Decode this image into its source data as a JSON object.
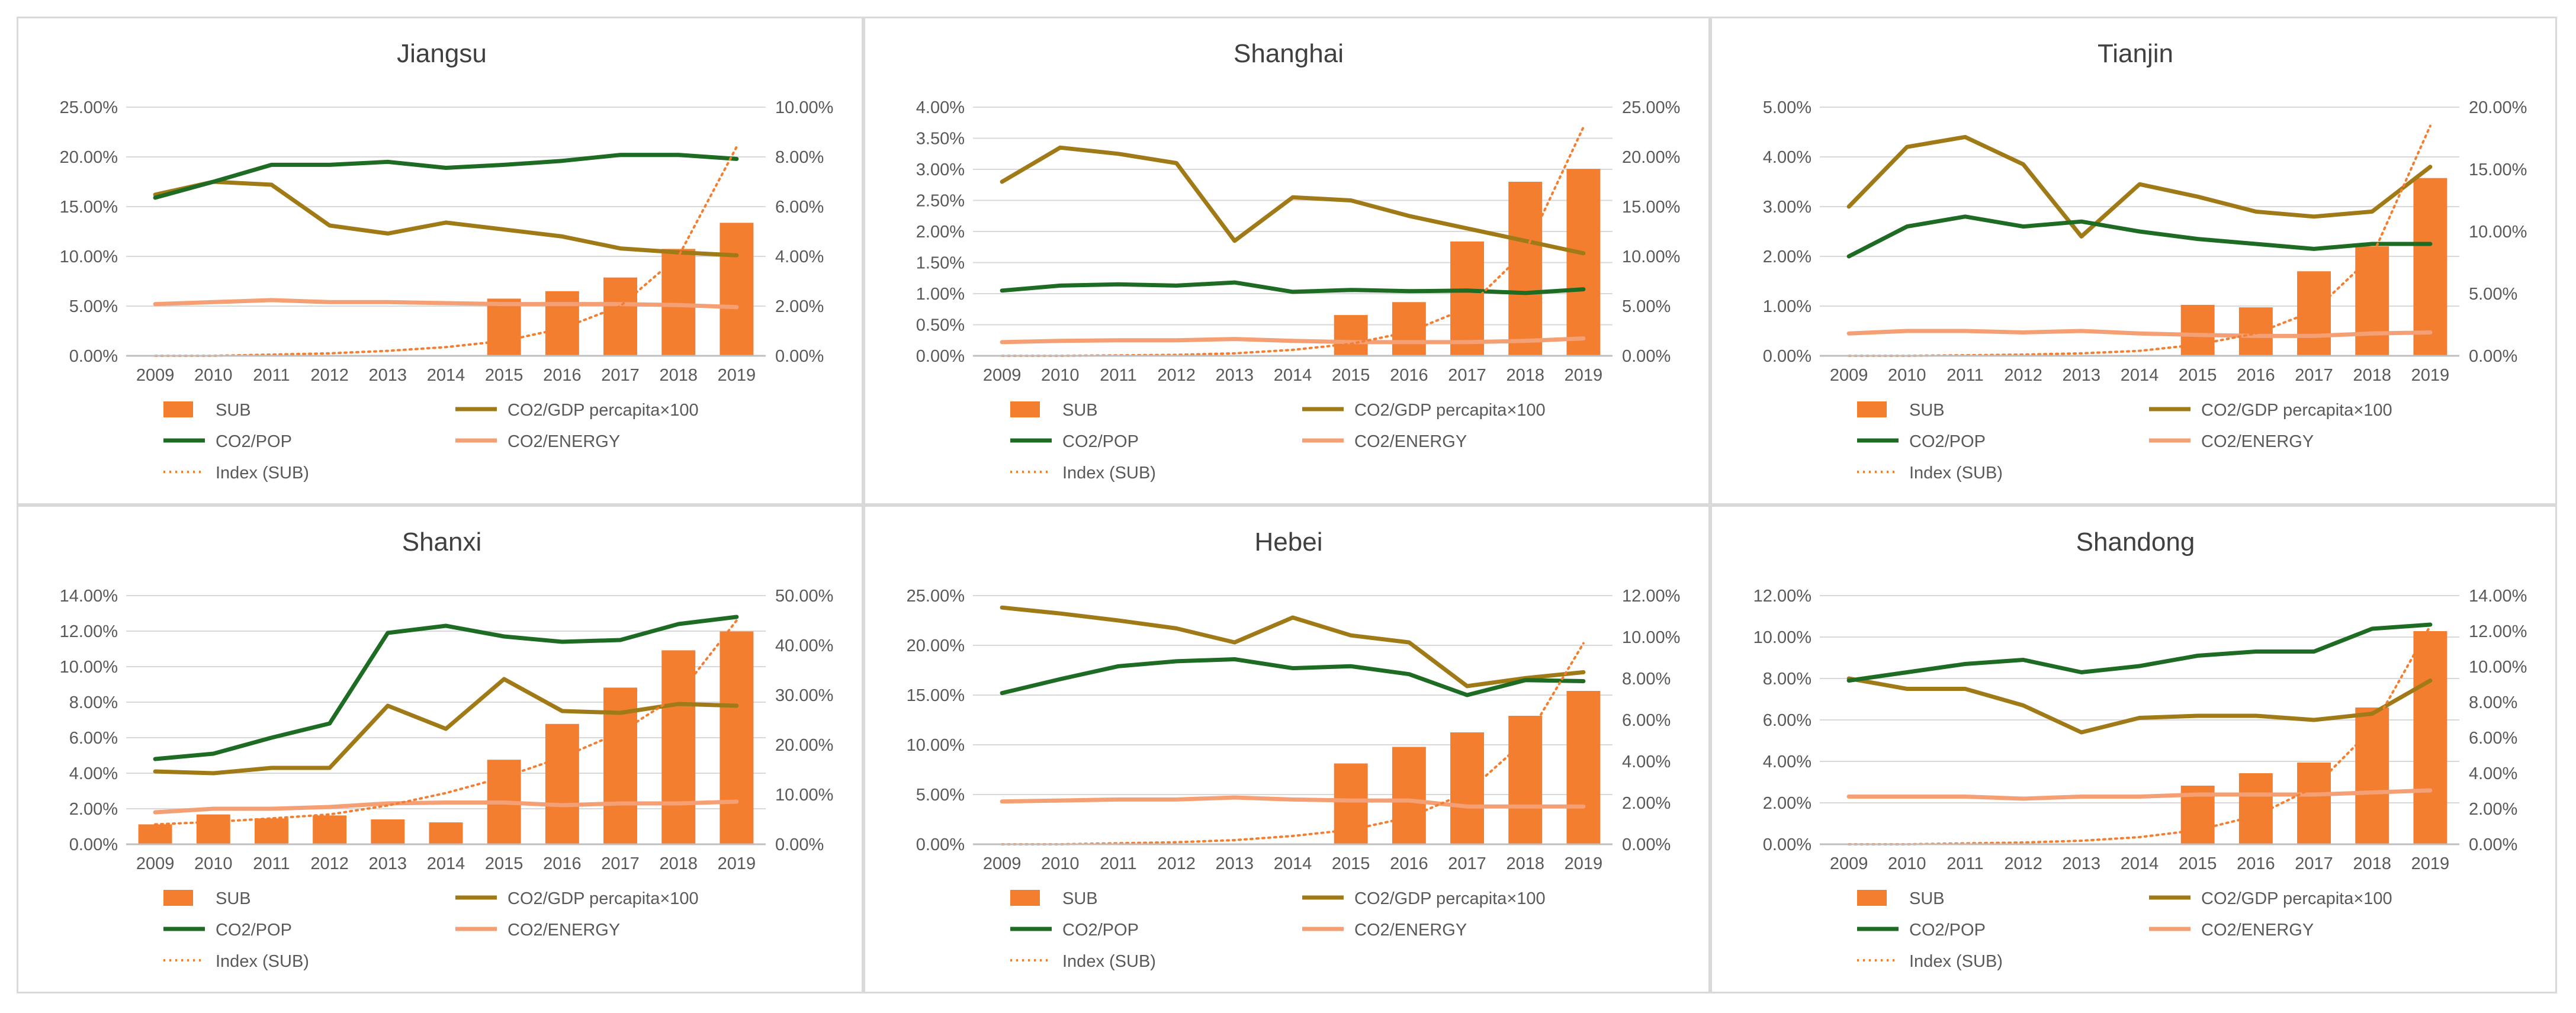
{
  "colors": {
    "SUB": "#f47e30",
    "CO2/GDP percapita×100": "#a07a16",
    "CO2/POP": "#1e6b23",
    "CO2/ENERGY": "#f4a074",
    "Index (SUB)": "#f47e30",
    "grid": "#d9d9d9",
    "axis": "#bfbfbf"
  },
  "chart_data": [
    {
      "type": "bar",
      "title": "Jiangsu",
      "categories": [
        "2009",
        "2010",
        "2011",
        "2012",
        "2013",
        "2014",
        "2015",
        "2016",
        "2017",
        "2018",
        "2019"
      ],
      "left_axis": {
        "min": 0,
        "max": 25,
        "step": 5,
        "tick_labels": [
          "0.00%",
          "5.00%",
          "10.00%",
          "15.00%",
          "20.00%",
          "25.00%"
        ]
      },
      "right_axis": {
        "min": 0,
        "max": 10,
        "step": 2,
        "tick_labels": [
          "0.00%",
          "2.00%",
          "4.00%",
          "6.00%",
          "8.00%",
          "10.00%"
        ]
      },
      "legend": [
        "SUB",
        "CO2/GDP percapita×100",
        "CO2/POP",
        "CO2/ENERGY",
        "Index (SUB)"
      ],
      "series": [
        {
          "name": "SUB",
          "kind": "bar",
          "axis": "right",
          "values": [
            0,
            0,
            0,
            0,
            0,
            0,
            2.3,
            2.6,
            3.15,
            4.3,
            5.35
          ]
        },
        {
          "name": "CO2/GDP percapita×100",
          "kind": "line",
          "axis": "left",
          "values": [
            16.2,
            17.5,
            17.2,
            13.1,
            12.3,
            13.4,
            12.7,
            12.0,
            10.8,
            10.4,
            10.1
          ]
        },
        {
          "name": "CO2/POP",
          "kind": "line",
          "axis": "left",
          "values": [
            15.9,
            17.5,
            19.2,
            19.2,
            19.5,
            18.9,
            19.2,
            19.6,
            20.2,
            20.2,
            19.8
          ]
        },
        {
          "name": "CO2/ENERGY",
          "kind": "line",
          "axis": "left",
          "values": [
            5.2,
            5.4,
            5.6,
            5.4,
            5.4,
            5.3,
            5.2,
            5.2,
            5.2,
            5.1,
            4.9
          ]
        },
        {
          "name": "Index (SUB)",
          "kind": "trend",
          "axis": "right",
          "values": [
            0,
            0,
            0.05,
            0.1,
            0.2,
            0.35,
            0.6,
            1.1,
            2.0,
            4.0,
            8.4
          ]
        }
      ]
    },
    {
      "type": "bar",
      "title": "Shanghai",
      "categories": [
        "2009",
        "2010",
        "2011",
        "2012",
        "2013",
        "2014",
        "2015",
        "2016",
        "2017",
        "2018",
        "2019"
      ],
      "left_axis": {
        "min": 0,
        "max": 4,
        "step": 0.5,
        "tick_labels": [
          "0.00%",
          "0.50%",
          "1.00%",
          "1.50%",
          "2.00%",
          "2.50%",
          "3.00%",
          "3.50%",
          "4.00%"
        ]
      },
      "right_axis": {
        "min": 0,
        "max": 25,
        "step": 5,
        "tick_labels": [
          "0.00%",
          "5.00%",
          "10.00%",
          "15.00%",
          "20.00%",
          "25.00%"
        ]
      },
      "legend": [
        "SUB",
        "CO2/GDP percapita×100",
        "CO2/POP",
        "CO2/ENERGY",
        "Index (SUB)"
      ],
      "series": [
        {
          "name": "SUB",
          "kind": "bar",
          "axis": "right",
          "values": [
            0,
            0,
            0,
            0,
            0,
            0,
            4.1,
            5.4,
            11.5,
            17.5,
            18.8
          ]
        },
        {
          "name": "CO2/GDP percapita×100",
          "kind": "line",
          "axis": "left",
          "values": [
            2.8,
            3.35,
            3.25,
            3.1,
            1.85,
            2.55,
            2.5,
            2.25,
            2.05,
            1.85,
            1.65
          ]
        },
        {
          "name": "CO2/POP",
          "kind": "line",
          "axis": "left",
          "values": [
            1.05,
            1.13,
            1.15,
            1.13,
            1.18,
            1.03,
            1.06,
            1.04,
            1.05,
            1.01,
            1.07
          ]
        },
        {
          "name": "CO2/ENERGY",
          "kind": "line",
          "axis": "left",
          "values": [
            0.22,
            0.24,
            0.25,
            0.25,
            0.27,
            0.24,
            0.22,
            0.22,
            0.22,
            0.24,
            0.28
          ]
        },
        {
          "name": "Index (SUB)",
          "kind": "trend",
          "axis": "right",
          "values": [
            0,
            0,
            0.05,
            0.1,
            0.25,
            0.6,
            1.2,
            2.4,
            4.8,
            10.5,
            23.0
          ]
        }
      ]
    },
    {
      "type": "bar",
      "title": "Tianjin",
      "categories": [
        "2009",
        "2010",
        "2011",
        "2012",
        "2013",
        "2014",
        "2015",
        "2016",
        "2017",
        "2018",
        "2019"
      ],
      "left_axis": {
        "min": 0,
        "max": 5,
        "step": 1,
        "tick_labels": [
          "0.00%",
          "1.00%",
          "2.00%",
          "3.00%",
          "4.00%",
          "5.00%"
        ]
      },
      "right_axis": {
        "min": 0,
        "max": 20,
        "step": 5,
        "tick_labels": [
          "0.00%",
          "5.00%",
          "10.00%",
          "15.00%",
          "20.00%"
        ]
      },
      "legend": [
        "SUB",
        "CO2/GDP percapita×100",
        "CO2/POP",
        "CO2/ENERGY",
        "Index (SUB)"
      ],
      "series": [
        {
          "name": "SUB",
          "kind": "bar",
          "axis": "right",
          "values": [
            0,
            0,
            0,
            0,
            0,
            0,
            4.1,
            3.9,
            6.8,
            8.8,
            14.3
          ]
        },
        {
          "name": "CO2/GDP percapita×100",
          "kind": "line",
          "axis": "left",
          "values": [
            3.0,
            4.2,
            4.4,
            3.85,
            2.4,
            3.45,
            3.2,
            2.9,
            2.8,
            2.9,
            3.8
          ]
        },
        {
          "name": "CO2/POP",
          "kind": "line",
          "axis": "left",
          "values": [
            2.0,
            2.6,
            2.8,
            2.6,
            2.7,
            2.5,
            2.35,
            2.25,
            2.15,
            2.25,
            2.25
          ]
        },
        {
          "name": "CO2/ENERGY",
          "kind": "line",
          "axis": "left",
          "values": [
            0.45,
            0.5,
            0.5,
            0.47,
            0.5,
            0.45,
            0.42,
            0.4,
            0.4,
            0.45,
            0.47
          ]
        },
        {
          "name": "Index (SUB)",
          "kind": "trend",
          "axis": "right",
          "values": [
            0,
            0,
            0.05,
            0.1,
            0.2,
            0.4,
            0.9,
            1.8,
            3.6,
            8.0,
            18.5
          ]
        }
      ]
    },
    {
      "type": "bar",
      "title": "Shanxi",
      "categories": [
        "2009",
        "2010",
        "2011",
        "2012",
        "2013",
        "2014",
        "2015",
        "2016",
        "2017",
        "2018",
        "2019"
      ],
      "left_axis": {
        "min": 0,
        "max": 14,
        "step": 2,
        "tick_labels": [
          "0.00%",
          "2.00%",
          "4.00%",
          "6.00%",
          "8.00%",
          "10.00%",
          "12.00%",
          "14.00%"
        ]
      },
      "right_axis": {
        "min": 0,
        "max": 50,
        "step": 10,
        "tick_labels": [
          "0.00%",
          "10.00%",
          "20.00%",
          "30.00%",
          "40.00%",
          "50.00%"
        ]
      },
      "legend": [
        "SUB",
        "CO2/GDP percapita×100",
        "CO2/POP",
        "CO2/ENERGY",
        "Index (SUB)"
      ],
      "series": [
        {
          "name": "SUB",
          "kind": "bar",
          "axis": "right",
          "values": [
            4.0,
            6.0,
            5.2,
            5.8,
            5.0,
            4.4,
            17.0,
            24.2,
            31.5,
            39.0,
            42.8
          ]
        },
        {
          "name": "CO2/GDP percapita×100",
          "kind": "line",
          "axis": "left",
          "values": [
            4.1,
            4.0,
            4.3,
            4.3,
            7.8,
            6.5,
            9.3,
            7.5,
            7.4,
            7.9,
            7.8
          ]
        },
        {
          "name": "CO2/POP",
          "kind": "line",
          "axis": "left",
          "values": [
            4.8,
            5.1,
            6.0,
            6.8,
            11.9,
            12.3,
            11.7,
            11.4,
            11.5,
            12.4,
            12.8
          ]
        },
        {
          "name": "CO2/ENERGY",
          "kind": "line",
          "axis": "left",
          "values": [
            1.8,
            2.0,
            2.0,
            2.1,
            2.3,
            2.35,
            2.35,
            2.2,
            2.3,
            2.3,
            2.4
          ]
        },
        {
          "name": "Index (SUB)",
          "kind": "trend",
          "axis": "right",
          "values": [
            4.0,
            4.5,
            5.2,
            6.0,
            7.8,
            10.3,
            13.5,
            17.5,
            22.5,
            30.0,
            45.0
          ]
        }
      ]
    },
    {
      "type": "bar",
      "title": "Hebei",
      "categories": [
        "2009",
        "2010",
        "2011",
        "2012",
        "2013",
        "2014",
        "2015",
        "2016",
        "2017",
        "2018",
        "2019"
      ],
      "left_axis": {
        "min": 0,
        "max": 25,
        "step": 5,
        "tick_labels": [
          "0.00%",
          "5.00%",
          "10.00%",
          "15.00%",
          "20.00%",
          "25.00%"
        ]
      },
      "right_axis": {
        "min": 0,
        "max": 12,
        "step": 2,
        "tick_labels": [
          "0.00%",
          "2.00%",
          "4.00%",
          "6.00%",
          "8.00%",
          "10.00%",
          "12.00%"
        ]
      },
      "legend": [
        "SUB",
        "CO2/GDP percapita×100",
        "CO2/POP",
        "CO2/ENERGY",
        "Index (SUB)"
      ],
      "series": [
        {
          "name": "SUB",
          "kind": "bar",
          "axis": "right",
          "values": [
            0,
            0,
            0,
            0,
            0,
            0,
            3.9,
            4.7,
            5.4,
            6.2,
            7.4
          ]
        },
        {
          "name": "CO2/GDP percapita×100",
          "kind": "line",
          "axis": "left",
          "values": [
            23.8,
            23.2,
            22.5,
            21.7,
            20.3,
            22.8,
            21.0,
            20.3,
            15.9,
            16.7,
            17.3
          ]
        },
        {
          "name": "CO2/POP",
          "kind": "line",
          "axis": "left",
          "values": [
            15.2,
            16.6,
            17.9,
            18.4,
            18.6,
            17.7,
            17.9,
            17.1,
            15.0,
            16.5,
            16.4
          ]
        },
        {
          "name": "CO2/ENERGY",
          "kind": "line",
          "axis": "left",
          "values": [
            4.3,
            4.4,
            4.5,
            4.5,
            4.7,
            4.5,
            4.4,
            4.4,
            3.8,
            3.8,
            3.8
          ]
        },
        {
          "name": "Index (SUB)",
          "kind": "trend",
          "axis": "right",
          "values": [
            0,
            0,
            0.05,
            0.1,
            0.2,
            0.4,
            0.7,
            1.3,
            2.5,
            5.0,
            9.7
          ]
        }
      ]
    },
    {
      "type": "bar",
      "title": "Shandong",
      "categories": [
        "2009",
        "2010",
        "2011",
        "2012",
        "2013",
        "2014",
        "2015",
        "2016",
        "2017",
        "2018",
        "2019"
      ],
      "left_axis": {
        "min": 0,
        "max": 12,
        "step": 2,
        "tick_labels": [
          "0.00%",
          "2.00%",
          "4.00%",
          "6.00%",
          "8.00%",
          "10.00%",
          "12.00%"
        ]
      },
      "right_axis": {
        "min": 0,
        "max": 14,
        "step": 2,
        "tick_labels": [
          "0.00%",
          "2.00%",
          "4.00%",
          "6.00%",
          "8.00%",
          "10.00%",
          "12.00%",
          "14.00%"
        ]
      },
      "legend": [
        "SUB",
        "CO2/GDP percapita×100",
        "CO2/POP",
        "CO2/ENERGY",
        "Index (SUB)"
      ],
      "series": [
        {
          "name": "SUB",
          "kind": "bar",
          "axis": "right",
          "values": [
            0,
            0,
            0,
            0,
            0,
            0,
            3.3,
            4.0,
            4.6,
            7.7,
            12.0
          ]
        },
        {
          "name": "CO2/GDP percapita×100",
          "kind": "line",
          "axis": "left",
          "values": [
            8.0,
            7.5,
            7.5,
            6.7,
            5.4,
            6.1,
            6.2,
            6.2,
            6.0,
            6.3,
            7.9
          ]
        },
        {
          "name": "CO2/POP",
          "kind": "line",
          "axis": "left",
          "values": [
            7.9,
            8.3,
            8.7,
            8.9,
            8.3,
            8.6,
            9.1,
            9.3,
            9.3,
            10.4,
            10.6
          ]
        },
        {
          "name": "CO2/ENERGY",
          "kind": "line",
          "axis": "left",
          "values": [
            2.3,
            2.3,
            2.3,
            2.2,
            2.3,
            2.3,
            2.4,
            2.4,
            2.4,
            2.5,
            2.6
          ]
        },
        {
          "name": "Index (SUB)",
          "kind": "trend",
          "axis": "right",
          "values": [
            0,
            0,
            0.05,
            0.1,
            0.2,
            0.4,
            0.8,
            1.6,
            3.2,
            6.5,
            12.3
          ]
        }
      ]
    }
  ]
}
